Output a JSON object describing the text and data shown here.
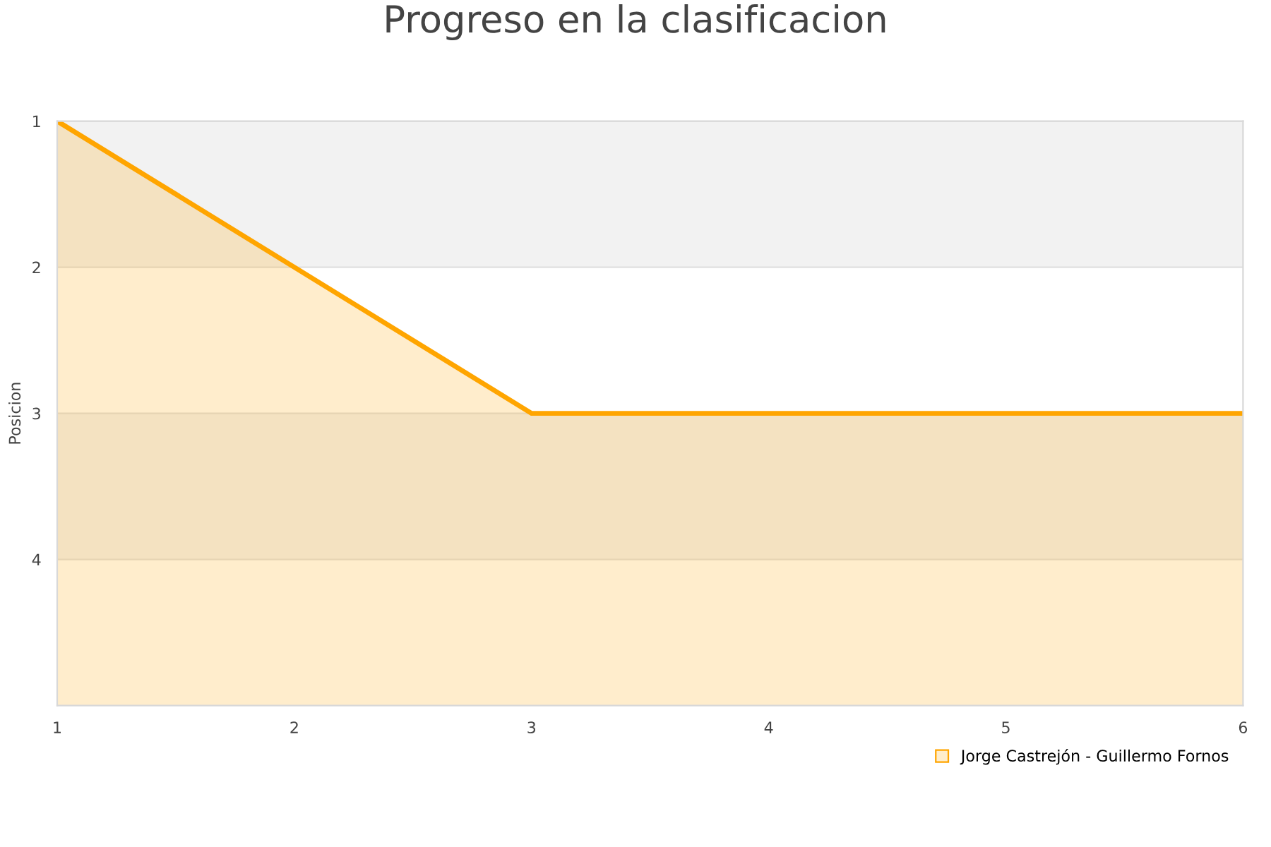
{
  "chart_data": {
    "type": "line",
    "title": "Progreso en la clasificacion",
    "ylabel": "Posicion",
    "x": [
      1,
      2,
      3,
      4,
      5,
      6
    ],
    "series": [
      {
        "name": "Jorge Castrejón - Guillermo Fornos",
        "color": "#ffa500",
        "values": [
          1,
          2,
          3,
          3,
          3,
          3
        ],
        "lower": [
          1,
          2,
          3,
          3,
          3,
          3
        ],
        "upper": [
          5,
          5,
          5,
          5,
          5,
          5
        ]
      }
    ],
    "xlim": [
      1,
      6
    ],
    "xticks": [
      1,
      2,
      3,
      4,
      5,
      6
    ],
    "ylim": [
      5,
      1
    ],
    "yticks": [
      1,
      2,
      3,
      4
    ],
    "bands": [
      {
        "axis": "y",
        "from": 1,
        "to": 2,
        "color": "#f2f2f2"
      },
      {
        "axis": "y",
        "from": 3,
        "to": 4,
        "color": "#f2f2f2"
      }
    ],
    "grid": "y",
    "legend": "bottom right"
  }
}
